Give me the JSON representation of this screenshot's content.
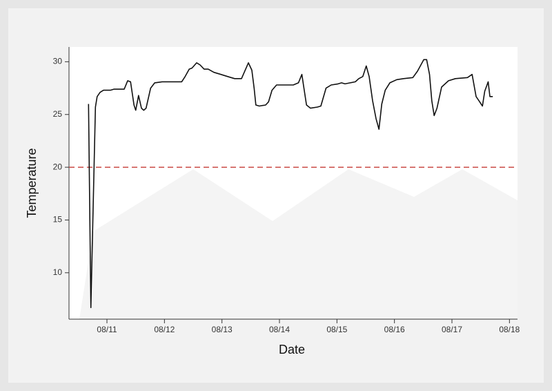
{
  "chart_data": {
    "type": "line",
    "xlabel": "Date",
    "ylabel": "Temperature",
    "x": [
      10.68,
      10.72,
      10.8,
      10.83,
      10.88,
      10.94,
      11.06,
      11.12,
      11.3,
      11.36,
      11.41,
      11.47,
      11.5,
      11.55,
      11.6,
      11.64,
      11.68,
      11.76,
      11.83,
      11.96,
      12.08,
      12.3,
      12.36,
      12.43,
      12.48,
      12.56,
      12.62,
      12.69,
      12.76,
      12.86,
      12.98,
      13.1,
      13.22,
      13.34,
      13.46,
      13.52,
      13.56,
      13.59,
      13.65,
      13.76,
      13.81,
      13.87,
      13.95,
      14.06,
      14.24,
      14.33,
      14.39,
      14.42,
      14.47,
      14.54,
      14.66,
      14.72,
      14.81,
      14.9,
      15.02,
      15.08,
      15.14,
      15.23,
      15.32,
      15.38,
      15.45,
      15.51,
      15.56,
      15.62,
      15.68,
      15.73,
      15.78,
      15.84,
      15.92,
      16.04,
      16.16,
      16.32,
      16.4,
      16.51,
      16.56,
      16.61,
      16.65,
      16.69,
      16.74,
      16.82,
      16.94,
      17.06,
      17.27,
      17.35,
      17.42,
      17.47,
      17.53,
      17.57,
      17.63,
      17.66,
      17.71
    ],
    "series": [
      {
        "color": "#111111",
        "values": [
          26.0,
          6.7,
          25.7,
          26.7,
          27.1,
          27.3,
          27.3,
          27.4,
          27.4,
          28.2,
          28.1,
          25.9,
          25.4,
          26.8,
          25.6,
          25.4,
          25.6,
          27.5,
          28.0,
          28.1,
          28.1,
          28.1,
          28.6,
          29.3,
          29.4,
          29.9,
          29.7,
          29.3,
          29.3,
          29.0,
          28.8,
          28.6,
          28.4,
          28.4,
          29.9,
          29.2,
          27.5,
          25.9,
          25.8,
          25.9,
          26.2,
          27.3,
          27.8,
          27.8,
          27.8,
          28.0,
          28.8,
          27.7,
          25.9,
          25.6,
          25.7,
          25.8,
          27.5,
          27.8,
          27.9,
          28.0,
          27.9,
          28.0,
          28.1,
          28.4,
          28.6,
          29.6,
          28.6,
          26.3,
          24.6,
          23.6,
          26.0,
          27.3,
          28.0,
          28.3,
          28.4,
          28.5,
          29.1,
          30.2,
          30.2,
          28.8,
          26.3,
          24.9,
          25.6,
          27.6,
          28.2,
          28.4,
          28.5,
          28.8,
          26.7,
          26.3,
          25.8,
          27.2,
          28.1,
          26.7,
          26.7
        ]
      }
    ],
    "threshold": 20,
    "threshold_color": "#c94a44",
    "xlim": [
      10.34,
      18.14
    ],
    "xticks": [
      {
        "value": 11,
        "label": "08/11"
      },
      {
        "value": 12,
        "label": "08/12"
      },
      {
        "value": 13,
        "label": "08/13"
      },
      {
        "value": 14,
        "label": "08/14"
      },
      {
        "value": 15,
        "label": "08/15"
      },
      {
        "value": 16,
        "label": "08/16"
      },
      {
        "value": 17,
        "label": "08/17"
      },
      {
        "value": 18,
        "label": "08/18"
      }
    ],
    "ylim": [
      5.6,
      31.4
    ],
    "yticks": [
      10,
      15,
      20,
      25,
      30
    ]
  }
}
